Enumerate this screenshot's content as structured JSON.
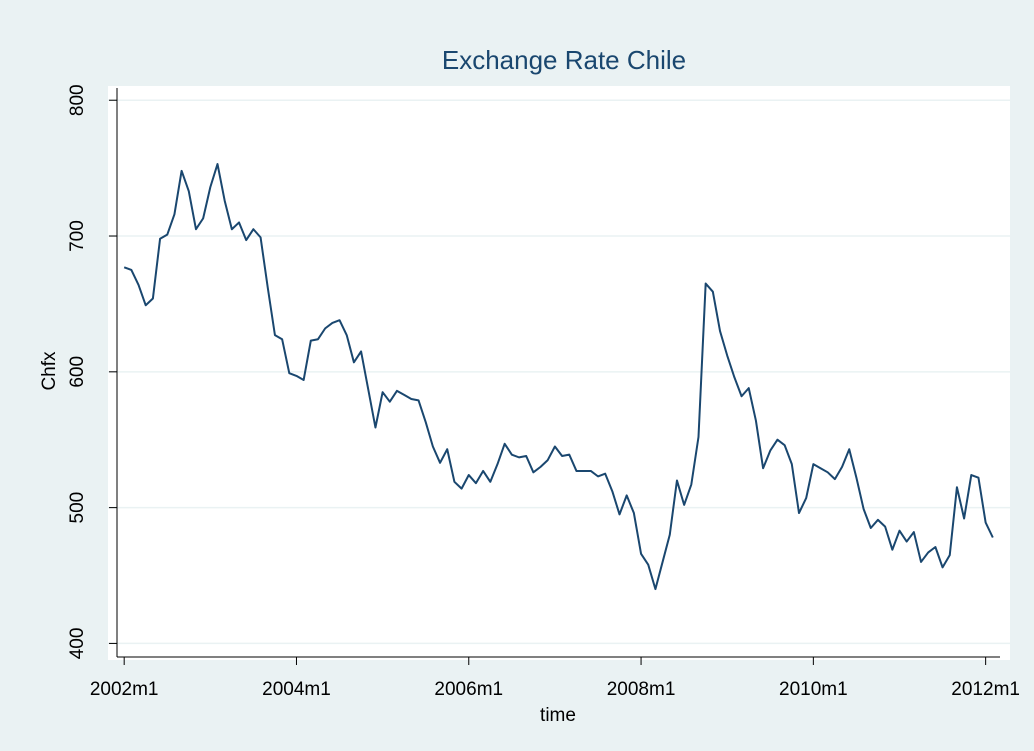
{
  "chart_data": {
    "type": "line",
    "title": "Exchange Rate Chile",
    "x_label": "time",
    "y_label": "Chfx",
    "x": [
      504,
      505,
      506,
      507,
      508,
      509,
      510,
      511,
      512,
      513,
      514,
      515,
      516,
      517,
      518,
      519,
      520,
      521,
      522,
      523,
      524,
      525,
      526,
      527,
      528,
      529,
      530,
      531,
      532,
      533,
      534,
      535,
      536,
      537,
      538,
      539,
      540,
      541,
      542,
      543,
      544,
      545,
      546,
      547,
      548,
      549,
      550,
      551,
      552,
      553,
      554,
      555,
      556,
      557,
      558,
      559,
      560,
      561,
      562,
      563,
      564,
      565,
      566,
      567,
      568,
      569,
      570,
      571,
      572,
      573,
      574,
      575,
      576,
      577,
      578,
      579,
      580,
      581,
      582,
      583,
      584,
      585,
      586,
      587,
      588,
      589,
      590,
      591,
      592,
      593,
      594,
      595,
      596,
      597,
      598,
      599,
      600,
      601,
      602,
      603,
      604,
      605,
      606,
      607,
      608,
      609,
      610,
      611,
      612,
      613,
      614,
      615,
      616,
      617,
      618,
      619,
      620,
      621,
      622,
      623,
      624,
      625
    ],
    "series": [
      {
        "name": "Chfx",
        "color": "#1a476f",
        "values": [
          677,
          675,
          664,
          649,
          654,
          698,
          701,
          716,
          748,
          733,
          705,
          713,
          736,
          753,
          726,
          705,
          710,
          697,
          705,
          699,
          662,
          627,
          624,
          599,
          597,
          594,
          623,
          624,
          632,
          636,
          638,
          627,
          607,
          615,
          587,
          559,
          585,
          578,
          586,
          583,
          580,
          579,
          563,
          545,
          533,
          543,
          519,
          514,
          524,
          518,
          527,
          519,
          532,
          547,
          539,
          537,
          538,
          526,
          530,
          535,
          545,
          538,
          539,
          527,
          527,
          527,
          523,
          525,
          512,
          495,
          509,
          496,
          466,
          458,
          440,
          460,
          480,
          520,
          502,
          517,
          552,
          665,
          659,
          630,
          612,
          596,
          582,
          588,
          564,
          529,
          542,
          550,
          546,
          532,
          496,
          507,
          532,
          529,
          526,
          521,
          530,
          543,
          522,
          499,
          485,
          491,
          486,
          469,
          483,
          475,
          482,
          460,
          467,
          471,
          456,
          465,
          515,
          492,
          524,
          522,
          489,
          478
        ]
      }
    ],
    "xlim": [
      503,
      626
    ],
    "ylim": [
      390,
      809
    ],
    "xticks": [
      {
        "value": 504,
        "label": "2002m1"
      },
      {
        "value": 528,
        "label": "2004m1"
      },
      {
        "value": 552,
        "label": "2006m1"
      },
      {
        "value": 576,
        "label": "2008m1"
      },
      {
        "value": 600,
        "label": "2010m1"
      },
      {
        "value": 624,
        "label": "2012m1"
      }
    ],
    "yticks": [
      400,
      500,
      600,
      700,
      800
    ],
    "grid": true
  }
}
